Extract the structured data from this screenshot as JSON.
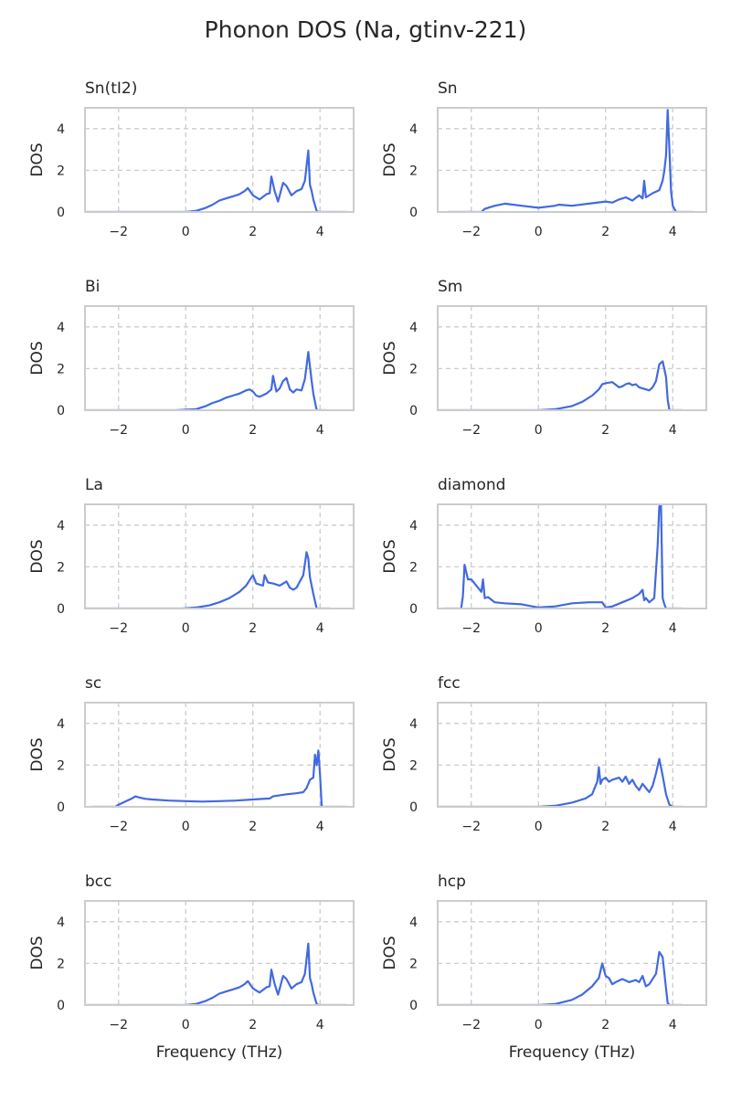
{
  "figure": {
    "title": "Phonon DOS (Na, gtinv-221)"
  },
  "colors": {
    "line": "#4169e1",
    "spine": "#cccccc",
    "grid": "#cccccc",
    "text": "#262626"
  },
  "chart_data": [
    {
      "type": "line",
      "title": "Sn(tI2)",
      "xlabel": "",
      "ylabel": "DOS",
      "xlim": [
        -3,
        5
      ],
      "ylim": [
        0,
        5
      ],
      "xticks": [
        -2,
        0,
        2,
        4
      ],
      "yticks": [
        0,
        2,
        4
      ],
      "grid": true,
      "series": [
        {
          "x": [
            -3.0,
            0.0,
            0.3,
            0.6,
            0.8,
            1.0,
            1.2,
            1.4,
            1.6,
            1.75,
            1.85,
            2.0,
            2.2,
            2.4,
            2.5,
            2.55,
            2.65,
            2.75,
            2.9,
            3.0,
            3.15,
            3.3,
            3.45,
            3.55,
            3.65,
            3.7,
            3.75,
            3.8,
            3.9,
            3.95,
            4.0,
            4.4,
            4.8
          ],
          "y": [
            0,
            0,
            0.05,
            0.2,
            0.35,
            0.55,
            0.65,
            0.75,
            0.85,
            1.0,
            1.15,
            0.8,
            0.6,
            0.85,
            0.9,
            1.7,
            1.0,
            0.5,
            1.4,
            1.25,
            0.8,
            1.0,
            1.1,
            1.5,
            2.95,
            1.3,
            1.0,
            0.6,
            0.05,
            0.0,
            0.0,
            0.0,
            0.0
          ]
        }
      ]
    },
    {
      "type": "line",
      "title": "Sn",
      "xlabel": "",
      "ylabel": "DOS",
      "xlim": [
        -3,
        5
      ],
      "ylim": [
        0,
        5
      ],
      "xticks": [
        -2,
        0,
        2,
        4
      ],
      "yticks": [
        0,
        2,
        4
      ],
      "grid": true,
      "series": [
        {
          "x": [
            -2.7,
            -1.7,
            -1.6,
            -1.3,
            -1.0,
            -0.5,
            0.0,
            0.5,
            0.6,
            1.0,
            1.5,
            2.0,
            2.2,
            2.4,
            2.6,
            2.8,
            3.0,
            3.1,
            3.15,
            3.2,
            3.4,
            3.6,
            3.7,
            3.75,
            3.8,
            3.85,
            3.9,
            3.95,
            4.0,
            4.1,
            4.3,
            4.6
          ],
          "y": [
            0,
            0,
            0.15,
            0.3,
            0.4,
            0.3,
            0.2,
            0.3,
            0.35,
            0.3,
            0.4,
            0.5,
            0.45,
            0.6,
            0.7,
            0.55,
            0.8,
            0.65,
            1.5,
            0.7,
            0.9,
            1.05,
            1.5,
            2.0,
            2.7,
            4.9,
            3.0,
            1.0,
            0.3,
            0.0,
            0.0,
            0.0
          ]
        }
      ]
    },
    {
      "type": "line",
      "title": "Bi",
      "xlabel": "",
      "ylabel": "DOS",
      "xlim": [
        -3,
        5
      ],
      "ylim": [
        0,
        5
      ],
      "xticks": [
        -2,
        0,
        2,
        4
      ],
      "yticks": [
        0,
        2,
        4
      ],
      "grid": true,
      "series": [
        {
          "x": [
            -3.0,
            -0.3,
            0.3,
            0.6,
            0.8,
            1.0,
            1.2,
            1.4,
            1.6,
            1.8,
            1.9,
            2.0,
            2.1,
            2.2,
            2.4,
            2.55,
            2.6,
            2.7,
            2.8,
            2.9,
            3.0,
            3.1,
            3.2,
            3.3,
            3.45,
            3.55,
            3.65,
            3.7,
            3.75,
            3.8,
            3.9,
            4.2
          ],
          "y": [
            0,
            0,
            0.05,
            0.2,
            0.35,
            0.45,
            0.6,
            0.7,
            0.8,
            0.95,
            1.0,
            0.9,
            0.7,
            0.65,
            0.8,
            1.0,
            1.65,
            0.9,
            1.05,
            1.4,
            1.55,
            1.0,
            0.85,
            1.0,
            0.95,
            1.5,
            2.8,
            2.1,
            1.4,
            0.8,
            0.0,
            0.0
          ]
        }
      ]
    },
    {
      "type": "line",
      "title": "Sm",
      "xlabel": "",
      "ylabel": "DOS",
      "xlim": [
        -3,
        5
      ],
      "ylim": [
        0,
        5
      ],
      "xticks": [
        -2,
        0,
        2,
        4
      ],
      "yticks": [
        0,
        2,
        4
      ],
      "grid": true,
      "series": [
        {
          "x": [
            -3.0,
            0.0,
            0.5,
            1.0,
            1.3,
            1.6,
            1.8,
            1.9,
            2.0,
            2.2,
            2.4,
            2.5,
            2.6,
            2.7,
            2.8,
            2.9,
            3.0,
            3.2,
            3.3,
            3.4,
            3.5,
            3.6,
            3.7,
            3.8,
            3.85,
            3.9,
            4.3
          ],
          "y": [
            0,
            0,
            0.05,
            0.2,
            0.4,
            0.7,
            1.0,
            1.25,
            1.3,
            1.35,
            1.1,
            1.15,
            1.25,
            1.3,
            1.2,
            1.25,
            1.1,
            1.0,
            0.95,
            1.1,
            1.4,
            2.2,
            2.35,
            1.6,
            0.5,
            0.0,
            0.0
          ]
        }
      ]
    },
    {
      "type": "line",
      "title": "La",
      "xlabel": "",
      "ylabel": "DOS",
      "xlim": [
        -3,
        5
      ],
      "ylim": [
        0,
        5
      ],
      "xticks": [
        -2,
        0,
        2,
        4
      ],
      "yticks": [
        0,
        2,
        4
      ],
      "grid": true,
      "series": [
        {
          "x": [
            -3.0,
            -0.1,
            0.3,
            0.7,
            1.0,
            1.3,
            1.6,
            1.8,
            1.9,
            2.0,
            2.1,
            2.2,
            2.3,
            2.35,
            2.45,
            2.6,
            2.8,
            3.0,
            3.1,
            3.2,
            3.3,
            3.4,
            3.5,
            3.6,
            3.65,
            3.7,
            3.8,
            3.9,
            4.3
          ],
          "y": [
            0,
            0,
            0.05,
            0.15,
            0.3,
            0.5,
            0.8,
            1.1,
            1.35,
            1.6,
            1.2,
            1.15,
            1.1,
            1.6,
            1.25,
            1.2,
            1.1,
            1.3,
            1.0,
            0.9,
            1.0,
            1.3,
            1.6,
            2.7,
            2.4,
            1.5,
            0.7,
            0.0,
            0.0
          ]
        }
      ]
    },
    {
      "type": "line",
      "title": "diamond",
      "xlabel": "",
      "ylabel": "DOS",
      "xlim": [
        -3,
        5
      ],
      "ylim": [
        0,
        5
      ],
      "xticks": [
        -2,
        0,
        2,
        4
      ],
      "yticks": [
        0,
        2,
        4
      ],
      "grid": true,
      "series": [
        {
          "x": [
            -2.8,
            -2.3,
            -2.25,
            -2.2,
            -2.1,
            -2.0,
            -1.9,
            -1.8,
            -1.7,
            -1.65,
            -1.6,
            -1.5,
            -1.3,
            -1.0,
            -0.5,
            0.0,
            0.5,
            1.0,
            1.5,
            1.9,
            2.0,
            2.2,
            2.5,
            2.8,
            3.0,
            3.1,
            3.15,
            3.2,
            3.3,
            3.45,
            3.55,
            3.6,
            3.65,
            3.7,
            3.75,
            3.8,
            4.1,
            4.3
          ],
          "y": [
            0,
            0,
            0.6,
            2.1,
            1.4,
            1.4,
            1.2,
            1.0,
            0.8,
            1.4,
            0.5,
            0.55,
            0.3,
            0.25,
            0.2,
            0.05,
            0.1,
            0.25,
            0.3,
            0.3,
            0.05,
            0.1,
            0.3,
            0.5,
            0.7,
            0.9,
            0.4,
            0.5,
            0.3,
            0.5,
            3.0,
            4.9,
            5.0,
            0.5,
            0.2,
            0.0,
            0.0,
            0.0
          ]
        }
      ]
    },
    {
      "type": "line",
      "title": "sc",
      "xlabel": "",
      "ylabel": "DOS",
      "xlim": [
        -3,
        5
      ],
      "ylim": [
        0,
        5
      ],
      "xticks": [
        -2,
        0,
        2,
        4
      ],
      "yticks": [
        0,
        2,
        4
      ],
      "grid": true,
      "series": [
        {
          "x": [
            -2.8,
            -2.1,
            -2.0,
            -1.8,
            -1.6,
            -1.5,
            -1.4,
            -1.2,
            -1.0,
            -0.5,
            0.0,
            0.5,
            1.0,
            1.5,
            2.0,
            2.5,
            2.6,
            3.0,
            3.3,
            3.5,
            3.6,
            3.7,
            3.8,
            3.85,
            3.9,
            3.95,
            4.0,
            4.05,
            4.1,
            4.5,
            4.8
          ],
          "y": [
            0,
            0,
            0.1,
            0.25,
            0.4,
            0.5,
            0.45,
            0.38,
            0.35,
            0.3,
            0.27,
            0.25,
            0.27,
            0.3,
            0.35,
            0.4,
            0.5,
            0.6,
            0.65,
            0.7,
            0.9,
            1.3,
            1.4,
            2.5,
            2.0,
            2.7,
            1.5,
            0.0,
            0.0,
            0.0,
            0.0
          ]
        }
      ]
    },
    {
      "type": "line",
      "title": "fcc",
      "xlabel": "",
      "ylabel": "DOS",
      "xlim": [
        -3,
        5
      ],
      "ylim": [
        0,
        5
      ],
      "xticks": [
        -2,
        0,
        2,
        4
      ],
      "yticks": [
        0,
        2,
        4
      ],
      "grid": true,
      "series": [
        {
          "x": [
            -3.0,
            0.0,
            0.5,
            1.0,
            1.4,
            1.6,
            1.75,
            1.8,
            1.85,
            1.9,
            2.0,
            2.1,
            2.2,
            2.4,
            2.5,
            2.6,
            2.7,
            2.8,
            2.9,
            3.0,
            3.1,
            3.2,
            3.3,
            3.4,
            3.5,
            3.6,
            3.7,
            3.8,
            3.9,
            4.0,
            4.3
          ],
          "y": [
            0,
            0,
            0.05,
            0.2,
            0.4,
            0.6,
            1.2,
            1.9,
            1.1,
            1.3,
            1.4,
            1.2,
            1.3,
            1.4,
            1.2,
            1.45,
            1.1,
            1.3,
            1.0,
            0.8,
            1.1,
            0.9,
            0.7,
            1.0,
            1.6,
            2.3,
            1.5,
            0.6,
            0.1,
            0.0,
            0.0
          ]
        }
      ]
    },
    {
      "type": "line",
      "title": "bcc",
      "xlabel": "Frequency (THz)",
      "ylabel": "DOS",
      "xlim": [
        -3,
        5
      ],
      "ylim": [
        0,
        5
      ],
      "xticks": [
        -2,
        0,
        2,
        4
      ],
      "yticks": [
        0,
        2,
        4
      ],
      "grid": true,
      "series": [
        {
          "x": [
            -3.0,
            0.0,
            0.3,
            0.6,
            0.8,
            1.0,
            1.2,
            1.4,
            1.6,
            1.75,
            1.85,
            2.0,
            2.2,
            2.4,
            2.5,
            2.55,
            2.65,
            2.75,
            2.9,
            3.0,
            3.15,
            3.3,
            3.45,
            3.55,
            3.65,
            3.7,
            3.75,
            3.8,
            3.9,
            3.95,
            4.0,
            4.4,
            4.8
          ],
          "y": [
            0,
            0,
            0.05,
            0.2,
            0.35,
            0.55,
            0.65,
            0.75,
            0.85,
            1.0,
            1.15,
            0.8,
            0.6,
            0.85,
            0.9,
            1.7,
            1.0,
            0.5,
            1.4,
            1.25,
            0.8,
            1.0,
            1.1,
            1.5,
            2.95,
            1.3,
            1.0,
            0.6,
            0.05,
            0.0,
            0.0,
            0.0,
            0.0
          ]
        }
      ]
    },
    {
      "type": "line",
      "title": "hcp",
      "xlabel": "Frequency (THz)",
      "ylabel": "DOS",
      "xlim": [
        -3,
        5
      ],
      "ylim": [
        0,
        5
      ],
      "xticks": [
        -2,
        0,
        2,
        4
      ],
      "yticks": [
        0,
        2,
        4
      ],
      "grid": true,
      "series": [
        {
          "x": [
            -3.0,
            0.0,
            0.5,
            1.0,
            1.3,
            1.6,
            1.8,
            1.9,
            2.0,
            2.1,
            2.2,
            2.3,
            2.5,
            2.7,
            2.9,
            3.0,
            3.1,
            3.2,
            3.3,
            3.5,
            3.6,
            3.7,
            3.8,
            3.85,
            3.9,
            4.3
          ],
          "y": [
            0,
            0,
            0.05,
            0.25,
            0.5,
            0.9,
            1.3,
            2.0,
            1.4,
            1.3,
            1.0,
            1.1,
            1.25,
            1.1,
            1.2,
            1.1,
            1.4,
            0.9,
            1.0,
            1.5,
            2.55,
            2.3,
            0.8,
            0.1,
            0.0,
            0.0
          ]
        }
      ]
    }
  ]
}
